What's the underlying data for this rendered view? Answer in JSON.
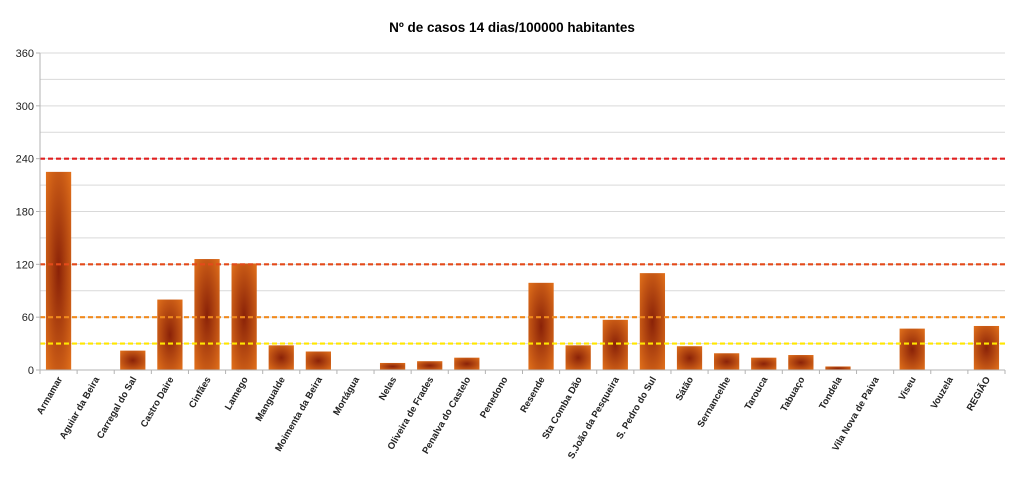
{
  "chart_data": {
    "type": "bar",
    "title": "Nº de casos 14 dias/100000 habitantes",
    "xlabel": "",
    "ylabel": "",
    "ylim": [
      0,
      360
    ],
    "yticks": [
      0,
      60,
      120,
      180,
      240,
      300,
      360
    ],
    "grid": true,
    "categories": [
      "Armamar",
      "Aguiar da Beira",
      "Carregal do Sal",
      "Castro Daire",
      "Cinfães",
      "Lamego",
      "Mangualde",
      "Moimenta da Beira",
      "Mortágua",
      "Nelas",
      "Oliveira de Frades",
      "Penalva do Castelo",
      "Penedono",
      "Resende",
      "Sta Comba Dão",
      "S.João da Pesqueira",
      "S. Pedro do Sul",
      "Sátão",
      "Sernancelhe",
      "Tarouca",
      "Tabuaço",
      "Tondela",
      "Vila Nova de Paiva",
      "Viseu",
      "Vouzela",
      "REGIÃO"
    ],
    "values": [
      225,
      0,
      22,
      80,
      126,
      121,
      28,
      21,
      0,
      8,
      10,
      14,
      0,
      99,
      28,
      57,
      110,
      27,
      19,
      14,
      17,
      4,
      0,
      47,
      0,
      50
    ],
    "reference_lines": [
      {
        "value": 240,
        "color": "#e02020"
      },
      {
        "value": 120,
        "color": "#e34a1a"
      },
      {
        "value": 60,
        "color": "#f08a1e"
      },
      {
        "value": 30,
        "color": "#ffe600"
      }
    ],
    "bar_colors": {
      "edge": "#e8761c",
      "center": "#8a2208"
    }
  }
}
